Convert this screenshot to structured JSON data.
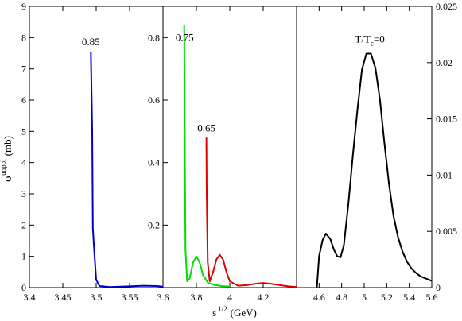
{
  "chart_data": {
    "type": "line",
    "xlabel": "s",
    "xlabel_sup": "1/2",
    "xlabel_unit": "(GeV)",
    "ylabel": "σ",
    "ylabel_sup": "unpol",
    "ylabel_unit": "(mb)",
    "grid": false,
    "legend": "none",
    "panels": [
      {
        "id": "left",
        "xlim": [
          3.4,
          3.6
        ],
        "ylim": [
          0,
          9
        ],
        "x_ticks": [
          3.4,
          3.45,
          3.5,
          3.55
        ],
        "x_tick_labels": [
          "3.4",
          "3.45",
          "3.5",
          "3.55"
        ],
        "y_axis_side": "left",
        "y_ticks": [
          0,
          1,
          2,
          3,
          4,
          5,
          6,
          7,
          8,
          9
        ],
        "y_tick_labels": [
          "0",
          "1",
          "2",
          "3",
          "4",
          "5",
          "6",
          "7",
          "8",
          "9"
        ],
        "series": [
          {
            "color": "#0000cc",
            "points": [
              [
                3.492,
                7.55
              ],
              [
                3.494,
                5.0
              ],
              [
                3.495,
                1.9
              ],
              [
                3.497,
                1.2
              ],
              [
                3.5,
                0.25
              ],
              [
                3.505,
                0.05
              ],
              [
                3.52,
                0.02
              ],
              [
                3.55,
                0.04
              ],
              [
                3.57,
                0.06
              ],
              [
                3.59,
                0.05
              ],
              [
                3.6,
                0.03
              ]
            ]
          }
        ],
        "annotations": [
          {
            "text": "0.85",
            "x": 3.492,
            "y": 7.75
          }
        ]
      },
      {
        "id": "middle",
        "xlim": [
          3.6,
          4.4
        ],
        "ylim": [
          0,
          0.9
        ],
        "x_ticks": [
          3.6,
          3.8,
          4.0,
          4.2
        ],
        "x_tick_labels": [
          "3.6",
          "3.8",
          "4",
          "4.2"
        ],
        "y_axis_side": "left",
        "y_ticks": [
          0.2,
          0.4,
          0.6,
          0.8
        ],
        "y_tick_labels": [
          "0.2",
          "0.4",
          "0.6",
          "0.8"
        ],
        "series": [
          {
            "color": "#00dd00",
            "points": [
              [
                3.727,
                0.84
              ],
              [
                3.73,
                0.5
              ],
              [
                3.735,
                0.12
              ],
              [
                3.745,
                0.02
              ],
              [
                3.76,
                0.03
              ],
              [
                3.78,
                0.08
              ],
              [
                3.8,
                0.1
              ],
              [
                3.82,
                0.08
              ],
              [
                3.84,
                0.04
              ],
              [
                3.87,
                0.015
              ],
              [
                3.9,
                0.01
              ],
              [
                3.95,
                0.005
              ],
              [
                4.0,
                0.003
              ]
            ]
          },
          {
            "color": "#dd0000",
            "points": [
              [
                3.86,
                0.48
              ],
              [
                3.862,
                0.3
              ],
              [
                3.868,
                0.08
              ],
              [
                3.88,
                0.02
              ],
              [
                3.9,
                0.05
              ],
              [
                3.92,
                0.09
              ],
              [
                3.94,
                0.105
              ],
              [
                3.96,
                0.09
              ],
              [
                3.98,
                0.05
              ],
              [
                4.0,
                0.02
              ],
              [
                4.05,
                0.006
              ],
              [
                4.1,
                0.008
              ],
              [
                4.15,
                0.012
              ],
              [
                4.2,
                0.015
              ],
              [
                4.25,
                0.012
              ],
              [
                4.3,
                0.008
              ],
              [
                4.35,
                0.004
              ],
              [
                4.4,
                0.002
              ]
            ]
          }
        ],
        "annotations": [
          {
            "text": "0.75",
            "x": 3.73,
            "y": 0.79
          },
          {
            "text": "0.65",
            "x": 3.86,
            "y": 0.5
          }
        ]
      },
      {
        "id": "right",
        "xlim": [
          4.4,
          5.6
        ],
        "ylim": [
          0,
          0.025
        ],
        "x_ticks": [
          4.6,
          4.8,
          5.0,
          5.2,
          5.4,
          5.6
        ],
        "x_tick_labels": [
          "4.6",
          "4.8",
          "5",
          "5.2",
          "5.4",
          "5.6"
        ],
        "y_axis_side": "right",
        "y_ticks": [
          0,
          0.005,
          0.01,
          0.015,
          0.02,
          0.025
        ],
        "y_tick_labels": [
          "0",
          "0.005",
          "0.01",
          "0.015",
          "0.02",
          "0.025"
        ],
        "series": [
          {
            "color": "#000000",
            "points": [
              [
                4.58,
                0.0
              ],
              [
                4.6,
                0.0028
              ],
              [
                4.63,
                0.0042
              ],
              [
                4.66,
                0.0048
              ],
              [
                4.7,
                0.0043
              ],
              [
                4.73,
                0.0034
              ],
              [
                4.76,
                0.0028
              ],
              [
                4.79,
                0.0027
              ],
              [
                4.82,
                0.0038
              ],
              [
                4.86,
                0.0075
              ],
              [
                4.9,
                0.0118
              ],
              [
                4.94,
                0.0158
              ],
              [
                4.98,
                0.0194
              ],
              [
                5.02,
                0.0208
              ],
              [
                5.06,
                0.0208
              ],
              [
                5.1,
                0.0195
              ],
              [
                5.14,
                0.0167
              ],
              [
                5.18,
                0.0128
              ],
              [
                5.22,
                0.0092
              ],
              [
                5.26,
                0.0064
              ],
              [
                5.3,
                0.0045
              ],
              [
                5.34,
                0.0032
              ],
              [
                5.38,
                0.0023
              ],
              [
                5.42,
                0.0017
              ],
              [
                5.46,
                0.0013
              ],
              [
                5.5,
                0.001
              ],
              [
                5.55,
                0.0008
              ],
              [
                5.6,
                0.0006
              ]
            ]
          }
        ],
        "annotations": [
          {
            "text": "T/T",
            "sub": "c",
            "suffix": "=0",
            "x": 5.05,
            "y": 0.0218
          }
        ]
      }
    ]
  }
}
